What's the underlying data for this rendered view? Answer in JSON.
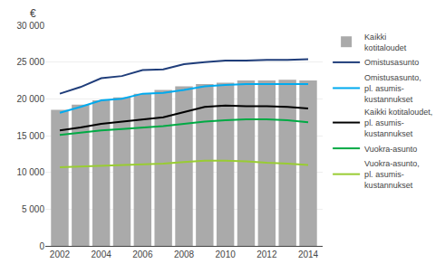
{
  "chart_data": {
    "type": "bar",
    "x": [
      2002,
      2003,
      2004,
      2005,
      2006,
      2007,
      2008,
      2009,
      2010,
      2011,
      2012,
      2013,
      2014
    ],
    "series": [
      {
        "name": "Kaikki\nkotitaloudet",
        "type": "bar",
        "color": "#aaaaaa",
        "values": [
          18500,
          19200,
          19800,
          20200,
          20700,
          21200,
          21700,
          22000,
          22200,
          22500,
          22500,
          22600,
          22500
        ]
      },
      {
        "name": "Omistusasunto",
        "type": "line",
        "color": "#1f3d7a",
        "values": [
          20700,
          21600,
          22800,
          23100,
          23900,
          24000,
          24700,
          25000,
          25200,
          25200,
          25300,
          25300,
          25400
        ]
      },
      {
        "name": "Omistusasunto,\npl. asumis-\nkustannukset",
        "type": "line",
        "color": "#00aaee",
        "values": [
          18100,
          18900,
          19800,
          20000,
          20700,
          20800,
          21200,
          21700,
          21900,
          22000,
          22000,
          22000,
          22000
        ]
      },
      {
        "name": "Kaikki kotitaloudet,\npl. asumis-\nkustannukset",
        "type": "line",
        "color": "#000000",
        "values": [
          15700,
          16100,
          16600,
          16900,
          17200,
          17500,
          18200,
          18900,
          19100,
          19000,
          19000,
          18900,
          18700
        ]
      },
      {
        "name": "Vuokra-asunto",
        "type": "line",
        "color": "#00aa44",
        "values": [
          15100,
          15400,
          15700,
          15900,
          16100,
          16300,
          16600,
          16900,
          17100,
          17200,
          17200,
          17100,
          16800
        ]
      },
      {
        "name": "Vuokra-asunto,\npl. asumis-\nkustannukset",
        "type": "line",
        "color": "#99cc33",
        "values": [
          10700,
          10800,
          10900,
          11000,
          11100,
          11200,
          11400,
          11600,
          11600,
          11500,
          11300,
          11200,
          11000
        ]
      }
    ],
    "ylabel": "€",
    "xlim": [
      2001.3,
      2014.7
    ],
    "xticks": [
      2002,
      2004,
      2006,
      2008,
      2010,
      2012,
      2014
    ],
    "ylim": [
      0,
      30000
    ],
    "yticks": [
      0,
      {
        "value": 5000,
        "label": "5 000"
      },
      {
        "value": 10000,
        "label": "10 000"
      },
      {
        "value": 15000,
        "label": "15 000"
      },
      {
        "value": 20000,
        "label": "20 000"
      },
      {
        "value": 25000,
        "label": "25 000"
      },
      {
        "value": 30000,
        "label": "30 000"
      }
    ],
    "grid": true
  }
}
